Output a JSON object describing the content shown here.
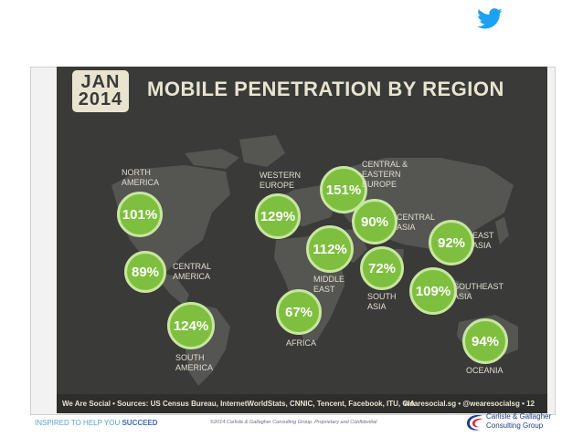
{
  "slide": {
    "headline": "MOBILE PENETRATION BY REGION",
    "date_month": "JAN",
    "date_year": "2014",
    "source_text": "We Are Social  •  Sources: US Census Bureau, InternetWorldStats, CNNIC, Tencent, Facebook, ITU, CIA",
    "handle_text": "wearesocial.sg  •  @wearesocialsg  •  12"
  },
  "regions": [
    {
      "name": "NORTH AMERICA",
      "value": "101%"
    },
    {
      "name": "CENTRAL AMERICA",
      "value": "89%"
    },
    {
      "name": "SOUTH AMERICA",
      "value": "124%"
    },
    {
      "name": "WESTERN EUROPE",
      "value": "129%"
    },
    {
      "name": "CENTRAL & EASTERN EUROPE",
      "value": "151%"
    },
    {
      "name": "CENTRAL ASIA",
      "value": "90%"
    },
    {
      "name": "MIDDLE EAST",
      "value": "112%"
    },
    {
      "name": "AFRICA",
      "value": "67%"
    },
    {
      "name": "SOUTH ASIA",
      "value": "72%"
    },
    {
      "name": "EAST ASIA",
      "value": "92%"
    },
    {
      "name": "SOUTHEAST ASIA",
      "value": "109%"
    },
    {
      "name": "OCEANIA",
      "value": "94%"
    }
  ],
  "footer": {
    "tagline_prefix": "INSPIRED TO HELP YOU ",
    "tagline_emphasis": "SUCCEED",
    "copyright": "©2014 Carlisle & Gallagher Consulting Group. Proprietary and Confidential",
    "company_line1": "Carlisle & Gallagher",
    "company_line2": "Consulting Group"
  },
  "colors": {
    "bubble": "#7fbf3f",
    "background": "#3a3a38",
    "twitter": "#1da1f2"
  },
  "icons": {
    "twitter": "twitter-bird-icon",
    "logo": "cg-swoosh-logo"
  }
}
